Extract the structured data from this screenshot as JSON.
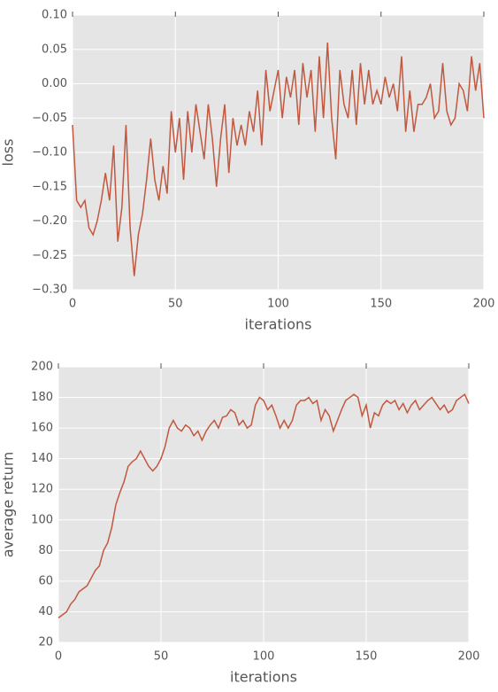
{
  "chart_data": [
    {
      "type": "line",
      "xlabel": "iterations",
      "ylabel": "loss",
      "x": [
        0,
        2,
        4,
        6,
        8,
        10,
        12,
        14,
        16,
        18,
        20,
        22,
        24,
        26,
        28,
        30,
        32,
        34,
        36,
        38,
        40,
        42,
        44,
        46,
        48,
        50,
        52,
        54,
        56,
        58,
        60,
        62,
        64,
        66,
        68,
        70,
        72,
        74,
        76,
        78,
        80,
        82,
        84,
        86,
        88,
        90,
        92,
        94,
        96,
        98,
        100,
        102,
        104,
        106,
        108,
        110,
        112,
        114,
        116,
        118,
        120,
        122,
        124,
        126,
        128,
        130,
        132,
        134,
        136,
        138,
        140,
        142,
        144,
        146,
        148,
        150,
        152,
        154,
        156,
        158,
        160,
        162,
        164,
        166,
        168,
        170,
        172,
        174,
        176,
        178,
        180,
        182,
        184,
        186,
        188,
        190,
        192,
        194,
        196,
        198,
        200
      ],
      "series": [
        {
          "color": "#c1583f",
          "values": [
            -0.06,
            -0.17,
            -0.18,
            -0.17,
            -0.21,
            -0.22,
            -0.2,
            -0.17,
            -0.13,
            -0.17,
            -0.09,
            -0.23,
            -0.18,
            -0.06,
            -0.21,
            -0.28,
            -0.22,
            -0.19,
            -0.14,
            -0.08,
            -0.14,
            -0.17,
            -0.12,
            -0.16,
            -0.04,
            -0.1,
            -0.05,
            -0.14,
            -0.04,
            -0.1,
            -0.03,
            -0.07,
            -0.11,
            -0.03,
            -0.08,
            -0.15,
            -0.08,
            -0.03,
            -0.13,
            -0.05,
            -0.09,
            -0.06,
            -0.09,
            -0.04,
            -0.07,
            -0.01,
            -0.09,
            0.02,
            -0.04,
            -0.01,
            0.02,
            -0.05,
            0.01,
            -0.02,
            0.02,
            -0.06,
            0.03,
            -0.02,
            0.02,
            -0.07,
            0.04,
            -0.05,
            0.06,
            -0.05,
            -0.11,
            0.02,
            -0.03,
            -0.05,
            0.02,
            -0.06,
            0.03,
            -0.03,
            0.02,
            -0.03,
            -0.01,
            -0.03,
            0.01,
            -0.02,
            0,
            -0.04,
            0.04,
            -0.07,
            -0.01,
            -0.07,
            -0.03,
            -0.03,
            -0.02,
            0,
            -0.05,
            -0.04,
            0.03,
            -0.04,
            -0.06,
            -0.05,
            0,
            -0.01,
            -0.04,
            0.04,
            -0.01,
            0.03,
            -0.05
          ]
        }
      ],
      "xlim": [
        0,
        200
      ],
      "xticks": [
        0,
        50,
        100,
        150,
        200
      ],
      "ylim": [
        -0.3,
        0.1
      ],
      "yticks": [
        {
          "value": -0.3,
          "label": "−0.30"
        },
        {
          "value": -0.25,
          "label": "−0.25"
        },
        {
          "value": -0.2,
          "label": "−0.20"
        },
        {
          "value": -0.15,
          "label": "−0.15"
        },
        {
          "value": -0.1,
          "label": "−0.10"
        },
        {
          "value": -0.05,
          "label": "−0.05"
        },
        {
          "value": 0,
          "label": "0.00"
        },
        {
          "value": 0.05,
          "label": "0.05"
        },
        {
          "value": 0.1,
          "label": "0.10"
        }
      ],
      "grid": true
    },
    {
      "type": "line",
      "xlabel": "iterations",
      "ylabel": "average return",
      "x": [
        0,
        2,
        4,
        6,
        8,
        10,
        12,
        14,
        16,
        18,
        20,
        22,
        24,
        26,
        28,
        30,
        32,
        34,
        36,
        38,
        40,
        42,
        44,
        46,
        48,
        50,
        52,
        54,
        56,
        58,
        60,
        62,
        64,
        66,
        68,
        70,
        72,
        74,
        76,
        78,
        80,
        82,
        84,
        86,
        88,
        90,
        92,
        94,
        96,
        98,
        100,
        102,
        104,
        106,
        108,
        110,
        112,
        114,
        116,
        118,
        120,
        122,
        124,
        126,
        128,
        130,
        132,
        134,
        136,
        138,
        140,
        142,
        144,
        146,
        148,
        150,
        152,
        154,
        156,
        158,
        160,
        162,
        164,
        166,
        168,
        170,
        172,
        174,
        176,
        178,
        180,
        182,
        184,
        186,
        188,
        190,
        192,
        194,
        196,
        198,
        200
      ],
      "series": [
        {
          "color": "#c1583f",
          "values": [
            36,
            38,
            40,
            45,
            48,
            53,
            55,
            57,
            62,
            67,
            70,
            80,
            85,
            95,
            110,
            118,
            125,
            135,
            138,
            140,
            145,
            140,
            135,
            132,
            135,
            140,
            148,
            160,
            165,
            160,
            158,
            162,
            160,
            155,
            158,
            152,
            158,
            162,
            165,
            160,
            167,
            168,
            172,
            170,
            162,
            165,
            160,
            162,
            175,
            180,
            178,
            172,
            175,
            168,
            160,
            165,
            160,
            165,
            175,
            178,
            178,
            180,
            176,
            178,
            165,
            172,
            168,
            158,
            165,
            172,
            178,
            180,
            182,
            180,
            168,
            175,
            160,
            170,
            168,
            175,
            178,
            176,
            178,
            172,
            176,
            170,
            175,
            178,
            172,
            175,
            178,
            180,
            176,
            172,
            175,
            170,
            172,
            178,
            180,
            182,
            176
          ]
        }
      ],
      "xlim": [
        0,
        200
      ],
      "xticks": [
        0,
        50,
        100,
        150,
        200
      ],
      "ylim": [
        20,
        200
      ],
      "yticks": [
        20,
        40,
        60,
        80,
        100,
        120,
        140,
        160,
        180,
        200
      ],
      "grid": true
    }
  ]
}
